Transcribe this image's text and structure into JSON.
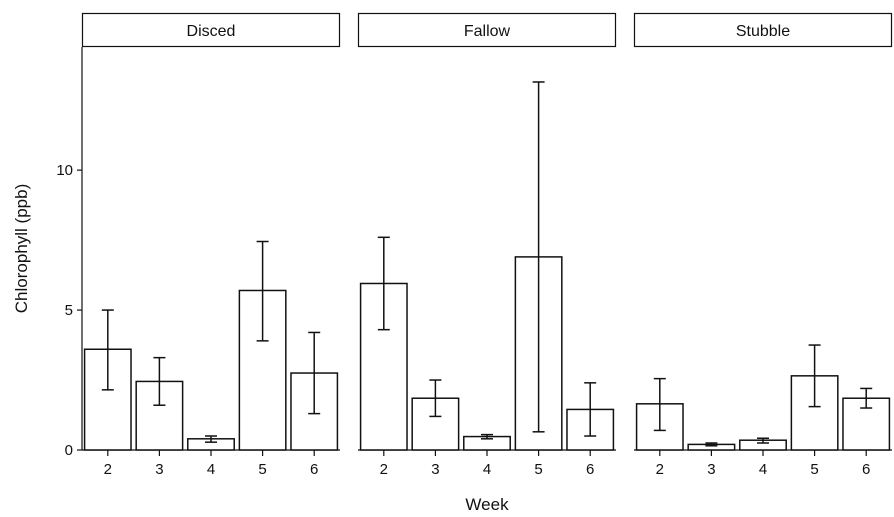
{
  "chart_data": {
    "type": "bar",
    "xlabel": "Week",
    "ylabel": "Chlorophyll (ppb)",
    "ylim": [
      0,
      14.4
    ],
    "yticks": [
      0,
      5,
      10
    ],
    "categories": [
      "2",
      "3",
      "4",
      "5",
      "6"
    ],
    "error_bars": true,
    "grid": false,
    "facets": [
      {
        "name": "Disced",
        "values": [
          3.6,
          2.45,
          0.4,
          5.7,
          2.75
        ],
        "err_low": [
          2.15,
          1.6,
          0.28,
          3.9,
          1.3
        ],
        "err_high": [
          5.0,
          3.3,
          0.5,
          7.45,
          4.2
        ]
      },
      {
        "name": "Fallow",
        "values": [
          5.95,
          1.85,
          0.48,
          6.9,
          1.45
        ],
        "err_low": [
          4.3,
          1.2,
          0.4,
          0.65,
          0.5
        ],
        "err_high": [
          7.6,
          2.5,
          0.55,
          13.15,
          2.4
        ]
      },
      {
        "name": "Stubble",
        "values": [
          1.65,
          0.2,
          0.35,
          2.65,
          1.85
        ],
        "err_low": [
          0.7,
          0.15,
          0.25,
          1.55,
          1.5
        ],
        "err_high": [
          2.55,
          0.25,
          0.42,
          3.75,
          2.2
        ]
      }
    ]
  }
}
